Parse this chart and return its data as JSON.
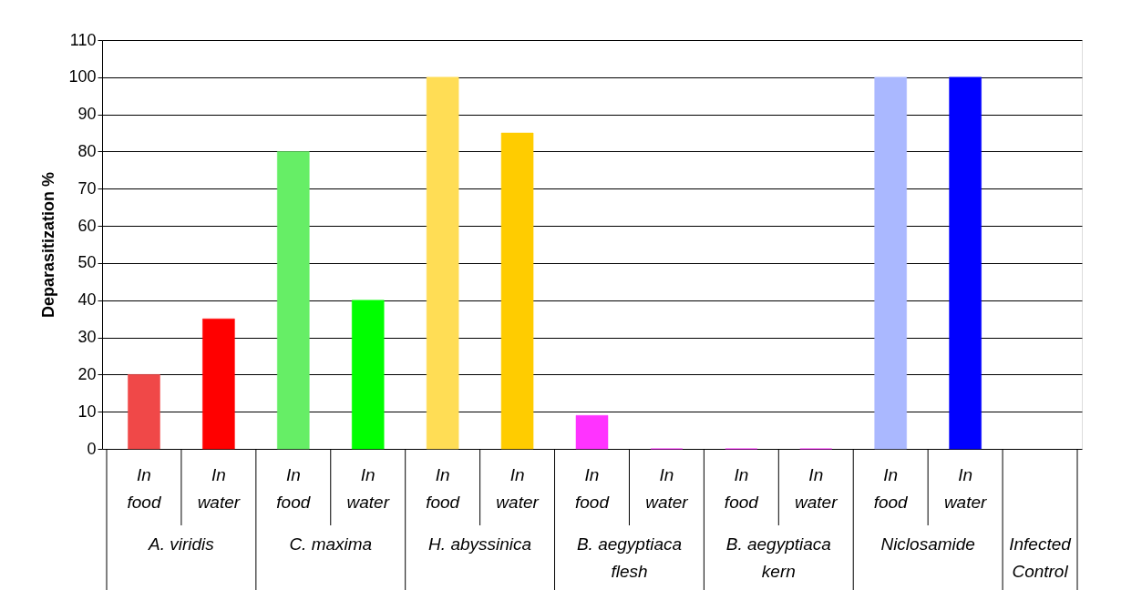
{
  "chart_data": {
    "type": "bar",
    "ylabel": "Deparasitization %",
    "categories": [
      "In food",
      "In water",
      "In food",
      "In water",
      "In food",
      "In water",
      "In food",
      "In water",
      "In food",
      "In water",
      "In food",
      "In water",
      null
    ],
    "values": [
      20,
      35,
      80,
      40,
      100,
      85,
      9,
      0,
      0,
      0,
      100,
      100,
      null
    ],
    "colors": [
      "#f04848",
      "#ff0000",
      "#66ee66",
      "#00ff00",
      "#ffdd55",
      "#ffcc00",
      "#ff33ff",
      "#ff00ff",
      "#ff00ff",
      "#ff00ff",
      "#aab8ff",
      "#0000ff",
      "#000000"
    ],
    "annotations": [
      "A. viridis",
      "C. maxima",
      "H. abyssinica",
      "B. aegyptiaca flesh",
      "B. aegyptiaca kern",
      "Niclosamide",
      "Infected Control"
    ],
    "ylim": [
      0,
      110
    ],
    "yticks": [
      0,
      10,
      20,
      30,
      40,
      50,
      60,
      70,
      80,
      90,
      100,
      110
    ],
    "grid": "y"
  }
}
